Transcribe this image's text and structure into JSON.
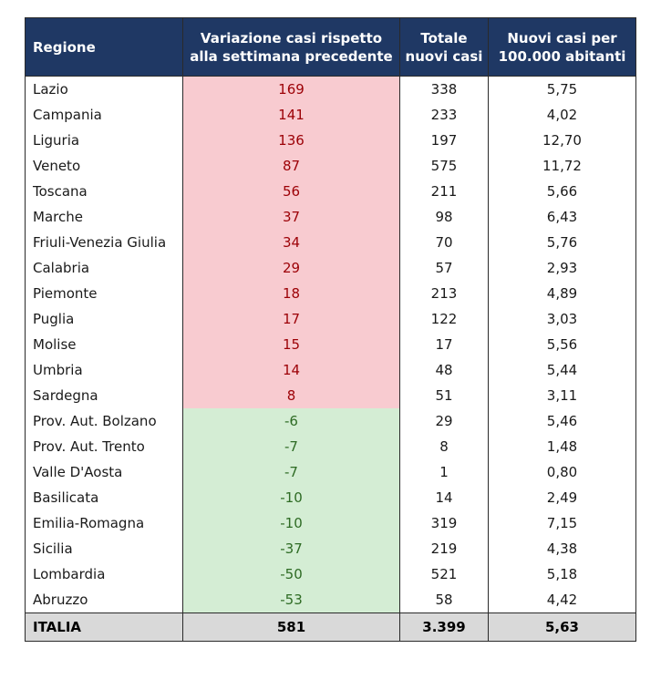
{
  "headers": {
    "region": "Regione",
    "variation": "Variazione casi rispetto alla settimana precedente",
    "total": "Totale nuovi casi",
    "rate": "Nuovi casi per 100.000 abitanti"
  },
  "rows": [
    {
      "region": "Lazio",
      "variation": "169",
      "total": "338",
      "rate": "5,75"
    },
    {
      "region": "Campania",
      "variation": "141",
      "total": "233",
      "rate": "4,02"
    },
    {
      "region": "Liguria",
      "variation": "136",
      "total": "197",
      "rate": "12,70"
    },
    {
      "region": "Veneto",
      "variation": "87",
      "total": "575",
      "rate": "11,72"
    },
    {
      "region": "Toscana",
      "variation": "56",
      "total": "211",
      "rate": "5,66"
    },
    {
      "region": "Marche",
      "variation": "37",
      "total": "98",
      "rate": "6,43"
    },
    {
      "region": "Friuli-Venezia Giulia",
      "variation": "34",
      "total": "70",
      "rate": "5,76"
    },
    {
      "region": "Calabria",
      "variation": "29",
      "total": "57",
      "rate": "2,93"
    },
    {
      "region": "Piemonte",
      "variation": "18",
      "total": "213",
      "rate": "4,89"
    },
    {
      "region": "Puglia",
      "variation": "17",
      "total": "122",
      "rate": "3,03"
    },
    {
      "region": "Molise",
      "variation": "15",
      "total": "17",
      "rate": "5,56"
    },
    {
      "region": "Umbria",
      "variation": "14",
      "total": "48",
      "rate": "5,44"
    },
    {
      "region": "Sardegna",
      "variation": "8",
      "total": "51",
      "rate": "3,11"
    },
    {
      "region": "Prov. Aut. Bolzano",
      "variation": "-6",
      "total": "29",
      "rate": "5,46"
    },
    {
      "region": "Prov. Aut. Trento",
      "variation": "-7",
      "total": "8",
      "rate": "1,48"
    },
    {
      "region": "Valle D'Aosta",
      "variation": "-7",
      "total": "1",
      "rate": "0,80"
    },
    {
      "region": "Basilicata",
      "variation": "-10",
      "total": "14",
      "rate": "2,49"
    },
    {
      "region": "Emilia-Romagna",
      "variation": "-10",
      "total": "319",
      "rate": "7,15"
    },
    {
      "region": "Sicilia",
      "variation": "-37",
      "total": "219",
      "rate": "4,38"
    },
    {
      "region": "Lombardia",
      "variation": "-50",
      "total": "521",
      "rate": "5,18"
    },
    {
      "region": "Abruzzo",
      "variation": "-53",
      "total": "58",
      "rate": "4,42"
    }
  ],
  "total_row": {
    "region": "ITALIA",
    "variation": "581",
    "total": "3.399",
    "rate": "5,63"
  },
  "colors": {
    "header_bg": "#1f3864",
    "increase_bg": "#f8cbd0",
    "increase_text": "#9c0006",
    "decrease_bg": "#d4edd4",
    "decrease_text": "#2e6b24",
    "total_row_bg": "#d9d9d9"
  }
}
